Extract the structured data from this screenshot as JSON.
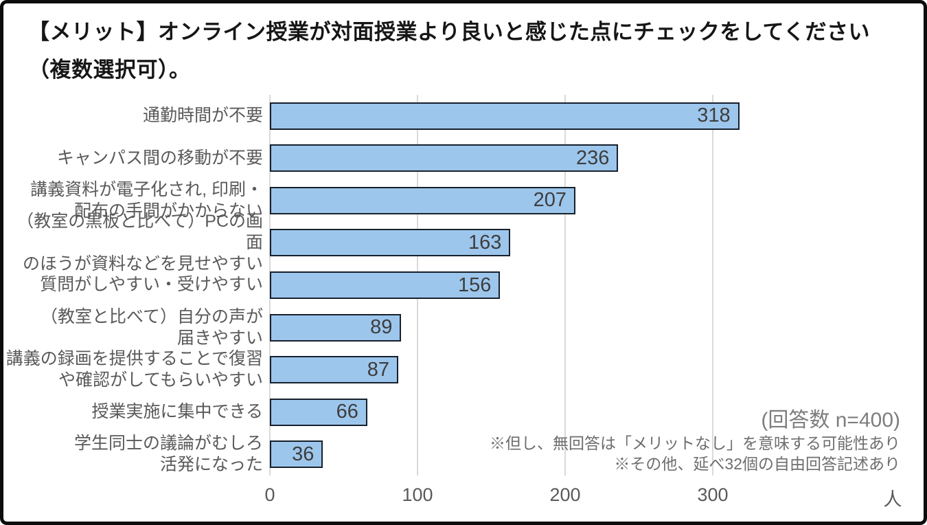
{
  "title": {
    "line1": "【メリット】オンライン授業が対面授業より良いと感じた点にチェックをしてください",
    "line2": "（複数選択可）。"
  },
  "chart_data": {
    "type": "bar",
    "orientation": "horizontal",
    "title": "【メリット】オンライン授業が対面授業より良いと感じた点にチェックをしてください（複数選択可）。",
    "categories": [
      "通勤時間が不要",
      "キャンパス間の移動が不要",
      "講義資料が電子化され, 印刷・\n配布の手間がかからない",
      "（教室の黒板と比べて）PCの画面\nのほうが資料などを見せやすい",
      "質問がしやすい・受けやすい",
      "（教室と比べて）自分の声が\n届きやすい",
      "講義の録画を提供することで復習\nや確認がしてもらいやすい",
      "授業実施に集中できる",
      "学生同士の議論がむしろ\n活発になった"
    ],
    "values": [
      318,
      236,
      207,
      163,
      156,
      89,
      87,
      66,
      36
    ],
    "x_ticks": [
      "0",
      "100",
      "200",
      "300"
    ],
    "x_axis_unit": "人",
    "xlim": [
      0,
      429
    ],
    "grid": true,
    "legend": false,
    "annotations": {
      "response_count": "(回答数 n=400)",
      "note1": "※但し、無回答は「メリットなし」を意味する可能性あり",
      "note2": "※その他、延べ32個の自由回答記述あり"
    },
    "colors": {
      "bar_fill": "#9DC6EC",
      "bar_border": "#16202C",
      "gridline": "#D9D9D9",
      "label_text": "#595959",
      "value_text": "#3D3D3D"
    }
  }
}
